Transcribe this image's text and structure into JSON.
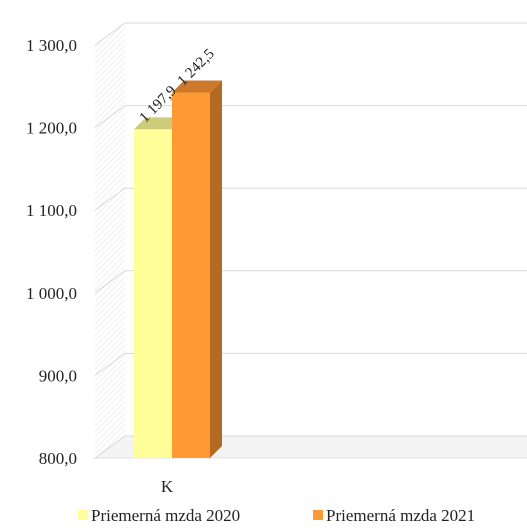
{
  "chart_data": {
    "type": "bar",
    "categories": [
      "K"
    ],
    "series": [
      {
        "name": "Priemerná mzda 2020",
        "values": [
          1197.9
        ],
        "label": "1 197,9",
        "color": "#ffff99"
      },
      {
        "name": "Priemerná mzda 2021",
        "values": [
          1242.5
        ],
        "label": "1 242,5",
        "color": "#ff9933"
      }
    ],
    "ylim": [
      800,
      1300
    ],
    "ticks": [
      {
        "value": 800,
        "label": "800,0"
      },
      {
        "value": 900,
        "label": "900,0"
      },
      {
        "value": 1000,
        "label": "1 000,0"
      },
      {
        "value": 1100,
        "label": "1 100,0"
      },
      {
        "value": 1200,
        "label": "1 200,0"
      },
      {
        "value": 1300,
        "label": "1 300,0"
      }
    ],
    "three_d": true,
    "grid": true,
    "legend_position": "bottom",
    "title": "",
    "xlabel": "",
    "ylabel": ""
  }
}
